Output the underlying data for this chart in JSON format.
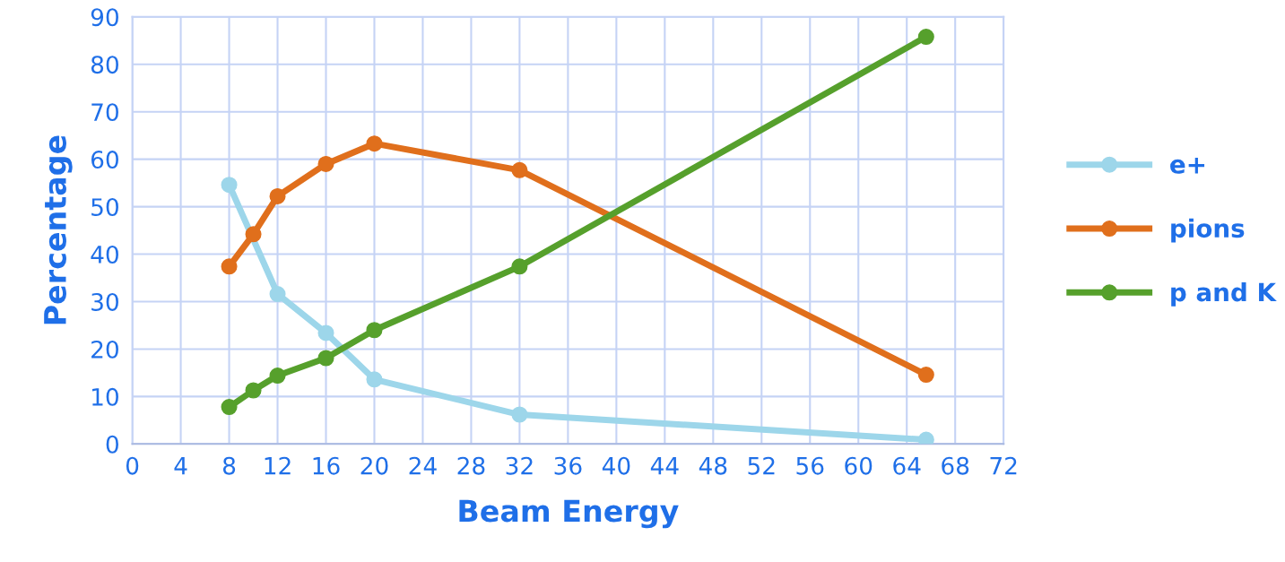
{
  "chart_data": {
    "type": "line",
    "xlabel": "Beam Energy",
    "ylabel": "Percentage",
    "xlim": [
      0,
      72
    ],
    "xticks": [
      0,
      4,
      8,
      12,
      16,
      20,
      24,
      28,
      32,
      36,
      40,
      44,
      48,
      52,
      56,
      60,
      64,
      68,
      72
    ],
    "ylim": [
      0,
      90
    ],
    "yticks": [
      0,
      10,
      20,
      30,
      40,
      50,
      60,
      70,
      80,
      90
    ],
    "grid": true,
    "legend": "right",
    "marker": "circle",
    "line_style": "solid",
    "x": [
      8,
      10,
      12,
      16,
      20,
      32,
      65.6
    ],
    "series": [
      {
        "name": "e+",
        "color": "#9dd6ea",
        "x": [
          8,
          12,
          16,
          20,
          32,
          65.6
        ],
        "values": [
          54.6,
          31.6,
          23.4,
          13.6,
          6.2,
          0.9
        ]
      },
      {
        "name": "pions",
        "color": "#e06f1c",
        "values": [
          37.4,
          44.2,
          52.2,
          59.0,
          63.3,
          57.7,
          14.6
        ]
      },
      {
        "name": "p and K",
        "color": "#56a02c",
        "values": [
          7.8,
          11.3,
          14.4,
          18.1,
          24.0,
          37.4,
          85.8
        ]
      }
    ]
  }
}
